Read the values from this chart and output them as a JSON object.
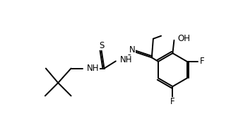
{
  "line_color": "#000000",
  "bg_color": "#ffffff",
  "line_width": 1.4,
  "font_size": 8.5,
  "figsize": [
    3.44,
    1.85
  ],
  "dpi": 100,
  "xlim": [
    -0.05,
    1.1
  ],
  "ylim": [
    0.05,
    0.95
  ]
}
